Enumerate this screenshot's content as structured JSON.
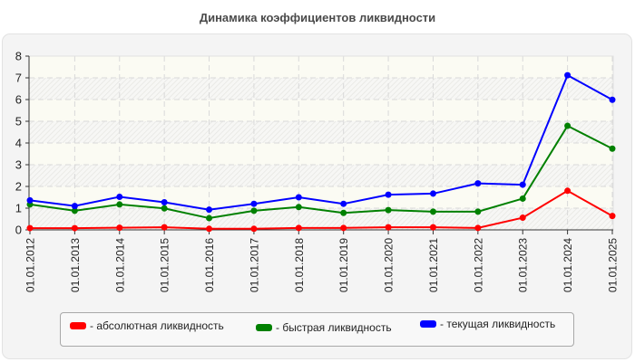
{
  "title": "Динамика коэффициентов ликвидности",
  "chart_data": {
    "type": "line",
    "title": "Динамика коэффициентов ликвидности",
    "xlabel": "",
    "ylabel": "",
    "ylim": [
      0,
      8
    ],
    "yticks": [
      0,
      1,
      2,
      3,
      4,
      5,
      6,
      7,
      8
    ],
    "grid": true,
    "legend_position": "bottom",
    "categories": [
      "01.01.2012",
      "01.01.2013",
      "01.01.2014",
      "01.01.2015",
      "01.01.2016",
      "01.01.2017",
      "01.01.2018",
      "01.01.2019",
      "01.01.2020",
      "01.01.2021",
      "01.01.2022",
      "01.01.2023",
      "01.01.2024",
      "01.01.2025"
    ],
    "series": [
      {
        "name": "абсолютная ликвидность",
        "color": "#ff0000",
        "values": [
          0.08,
          0.08,
          0.1,
          0.12,
          0.05,
          0.05,
          0.09,
          0.09,
          0.12,
          0.12,
          0.09,
          0.56,
          1.8,
          0.64
        ]
      },
      {
        "name": "быстрая ликвидность",
        "color": "#008000",
        "values": [
          1.17,
          0.88,
          1.17,
          0.99,
          0.54,
          0.88,
          1.05,
          0.78,
          0.91,
          0.84,
          0.84,
          1.44,
          4.79,
          3.74
        ]
      },
      {
        "name": "текущая ликвидность",
        "color": "#0000ff",
        "values": [
          1.36,
          1.1,
          1.52,
          1.27,
          0.93,
          1.2,
          1.5,
          1.2,
          1.62,
          1.67,
          2.14,
          2.08,
          7.12,
          5.99
        ]
      }
    ]
  },
  "legend": {
    "items": [
      {
        "label": "- абсолютная ликвидность",
        "color": "#ff0000"
      },
      {
        "label": "- быстрая ликвидность",
        "color": "#008000"
      },
      {
        "label": "- текущая ликвидность",
        "color": "#0000ff"
      }
    ]
  }
}
